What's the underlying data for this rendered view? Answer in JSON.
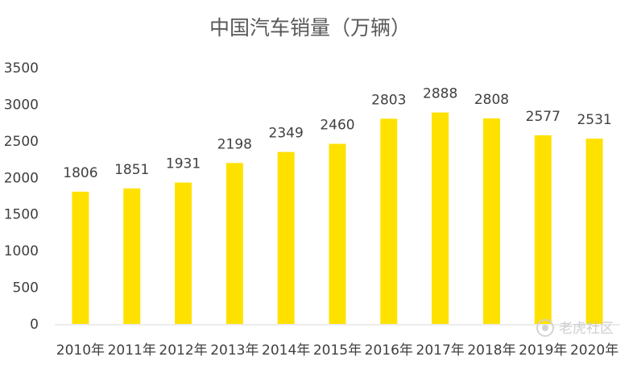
{
  "chart_data": {
    "type": "bar",
    "title": "中国汽车销量（万辆）",
    "xlabel": "",
    "ylabel": "",
    "categories": [
      "2010年",
      "2011年",
      "2012年",
      "2013年",
      "2014年",
      "2015年",
      "2016年",
      "2017年",
      "2018年",
      "2019年",
      "2020年"
    ],
    "values": [
      1806,
      1851,
      1931,
      2198,
      2349,
      2460,
      2803,
      2888,
      2808,
      2577,
      2531
    ],
    "ylim": [
      0,
      3500
    ],
    "yticks": [
      "0",
      "500",
      "1000",
      "1500",
      "2000",
      "2500",
      "3000",
      "3500"
    ],
    "grid": false,
    "legend": "none",
    "bar_color": "#FFE100"
  },
  "watermark": {
    "text": "老虎社区",
    "icon": "tiger-paw-icon"
  }
}
